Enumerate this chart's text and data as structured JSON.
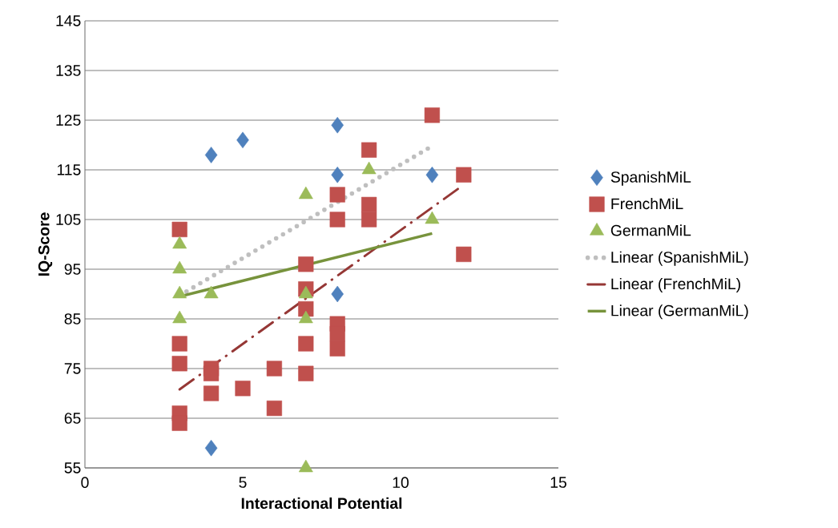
{
  "chart_data": {
    "type": "scatter",
    "xlabel": "Interactional Potential",
    "ylabel": "IQ-Score",
    "xlim": [
      0,
      15
    ],
    "xticks": [
      0,
      5,
      10,
      15
    ],
    "ylim": [
      55,
      145
    ],
    "yticks": [
      55,
      65,
      75,
      85,
      95,
      105,
      115,
      125,
      135,
      145
    ],
    "grid": "y",
    "legend": "right",
    "series": [
      {
        "name": "SpanishMiL",
        "marker": "diamond",
        "color": "#4f81bd",
        "x": [
          4,
          5,
          8,
          8,
          11,
          8,
          4
        ],
        "values": [
          118,
          121,
          124,
          114,
          114,
          90,
          59
        ]
      },
      {
        "name": "FrenchMiL",
        "marker": "square",
        "color": "#c0504d",
        "x": [
          3,
          3,
          3,
          3,
          3,
          4,
          4,
          4,
          5,
          6,
          6,
          7,
          7,
          7,
          7,
          7,
          8,
          8,
          8,
          8,
          8,
          9,
          9,
          9,
          11,
          12,
          12
        ],
        "values": [
          103,
          80,
          76,
          66,
          64,
          75,
          74,
          70,
          71,
          75,
          67,
          96,
          91,
          87,
          80,
          74,
          110,
          105,
          84,
          82,
          79,
          119,
          108,
          105,
          126,
          114,
          98
        ]
      },
      {
        "name": "GermanMiL",
        "marker": "triangle",
        "color": "#9bbb59",
        "x": [
          3,
          3,
          3,
          3,
          4,
          7,
          7,
          7,
          7,
          9,
          11
        ],
        "values": [
          100,
          95,
          90,
          85,
          90,
          110,
          90,
          85,
          55,
          115,
          105
        ]
      },
      {
        "name": "Linear (SpanishMiL)",
        "type": "line",
        "marker": "none",
        "line_style": "dotted",
        "color": "#bfbfbf",
        "x": [
          3,
          11
        ],
        "values": [
          89.7,
          119.8
        ]
      },
      {
        "name": "Linear (FrenchMiL)",
        "type": "line",
        "marker": "none",
        "line_style": "dashed",
        "color": "#953735",
        "x": [
          3,
          12
        ],
        "values": [
          70.8,
          112
        ]
      },
      {
        "name": "Linear (GermanMiL)",
        "type": "line",
        "marker": "none",
        "line_style": "solid",
        "color": "#77933c",
        "x": [
          3,
          11
        ],
        "values": [
          89.5,
          102.2
        ]
      }
    ]
  }
}
